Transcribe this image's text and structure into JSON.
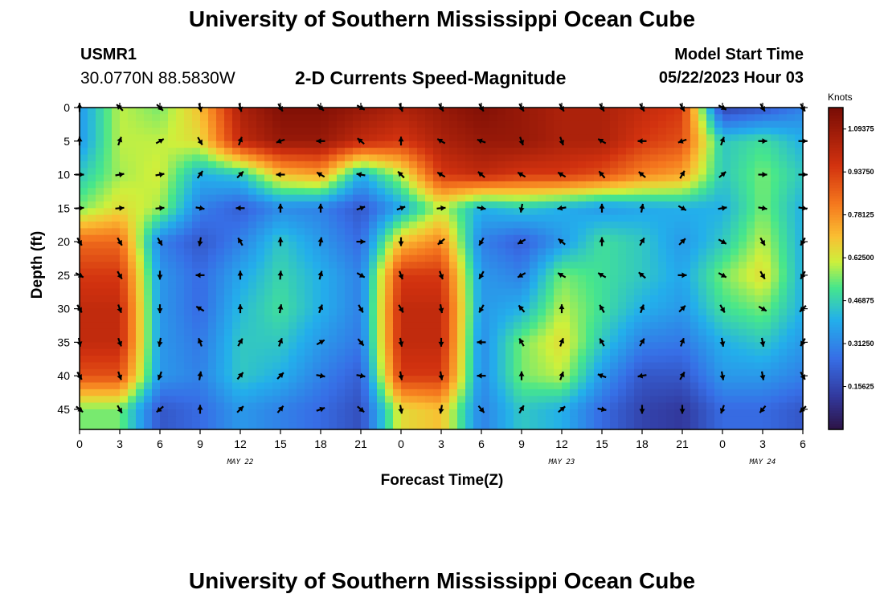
{
  "header": {
    "title": "University of Southern Mississippi Ocean Cube",
    "station": "USMR1",
    "coords": "30.0770N  88.5830W",
    "subtitle": "2-D Currents Speed-Magnitude",
    "start_label": "Model Start Time",
    "start_value": "05/22/2023 Hour 03"
  },
  "footer": {
    "title": "University of Southern Mississippi Ocean Cube"
  },
  "colors": {
    "background": "#ffffff",
    "axis": "#000000",
    "arrow": "#000000"
  },
  "chart_data": {
    "type": "heatmap",
    "xlabel": "Forecast Time(Z)",
    "ylabel": "Depth (ft)",
    "x_tick_labels": [
      "0",
      "3",
      "6",
      "9",
      "12",
      "15",
      "18",
      "21",
      "0",
      "3",
      "6",
      "9",
      "12",
      "15",
      "18",
      "21",
      "0",
      "3",
      "6"
    ],
    "day_labels": [
      {
        "text": "MAY 22",
        "tick": 4
      },
      {
        "text": "MAY 23",
        "tick": 12
      },
      {
        "text": "MAY 24",
        "tick": 17
      }
    ],
    "x_range_hours": [
      0,
      54
    ],
    "y_ticks": [
      0,
      5,
      10,
      15,
      20,
      25,
      30,
      35,
      40,
      45
    ],
    "y_range": [
      0,
      48
    ],
    "y_inverted": true,
    "colorbar": {
      "units": "Knots",
      "ticks": [
        "1.09375",
        "0.93750",
        "0.78125",
        "0.62500",
        "0.46875",
        "0.31250",
        "0.15625"
      ],
      "range": [
        0,
        1.171875
      ],
      "colormap": "jet-dark"
    },
    "depths": [
      0,
      5,
      10,
      15,
      20,
      25,
      30,
      35,
      40,
      45
    ],
    "speed": [
      [
        0.35,
        0.6,
        0.55,
        0.7,
        1.05,
        1.15,
        1.15,
        1.1,
        1.05,
        1.1,
        1.15,
        1.1,
        1.05,
        1.05,
        1.0,
        0.95,
        0.15,
        0.2,
        0.3
      ],
      [
        0.35,
        0.6,
        0.6,
        0.65,
        1.0,
        1.1,
        1.1,
        1.0,
        0.95,
        1.05,
        1.1,
        1.1,
        1.05,
        1.05,
        0.95,
        0.9,
        0.45,
        0.5,
        0.4
      ],
      [
        0.45,
        0.58,
        0.62,
        0.4,
        0.45,
        0.7,
        0.75,
        0.4,
        0.6,
        0.95,
        1.0,
        0.95,
        0.95,
        0.9,
        0.8,
        0.75,
        0.45,
        0.55,
        0.45
      ],
      [
        0.55,
        0.65,
        0.58,
        0.3,
        0.22,
        0.32,
        0.3,
        0.2,
        0.38,
        0.6,
        0.4,
        0.45,
        0.4,
        0.35,
        0.38,
        0.4,
        0.4,
        0.55,
        0.4
      ],
      [
        0.85,
        0.85,
        0.3,
        0.2,
        0.3,
        0.45,
        0.35,
        0.25,
        0.7,
        0.8,
        0.3,
        0.22,
        0.35,
        0.5,
        0.45,
        0.35,
        0.45,
        0.6,
        0.4
      ],
      [
        0.95,
        0.95,
        0.35,
        0.25,
        0.38,
        0.48,
        0.4,
        0.3,
        0.95,
        0.95,
        0.35,
        0.3,
        0.55,
        0.5,
        0.45,
        0.38,
        0.55,
        0.65,
        0.4
      ],
      [
        1.0,
        1.0,
        0.35,
        0.25,
        0.42,
        0.5,
        0.4,
        0.3,
        1.0,
        1.0,
        0.35,
        0.4,
        0.6,
        0.5,
        0.4,
        0.35,
        0.5,
        0.55,
        0.4
      ],
      [
        1.0,
        1.0,
        0.35,
        0.28,
        0.45,
        0.45,
        0.35,
        0.28,
        1.0,
        1.0,
        0.32,
        0.55,
        0.65,
        0.45,
        0.3,
        0.28,
        0.4,
        0.45,
        0.35
      ],
      [
        0.9,
        0.9,
        0.35,
        0.3,
        0.45,
        0.4,
        0.3,
        0.22,
        0.95,
        0.95,
        0.32,
        0.55,
        0.6,
        0.35,
        0.2,
        0.2,
        0.35,
        0.35,
        0.3
      ],
      [
        0.55,
        0.55,
        0.2,
        0.25,
        0.35,
        0.3,
        0.25,
        0.18,
        0.65,
        0.7,
        0.3,
        0.45,
        0.4,
        0.25,
        0.15,
        0.12,
        0.25,
        0.25,
        0.2
      ]
    ],
    "direction_deg": [
      [
        0,
        315,
        135,
        165,
        165,
        150,
        135,
        120,
        160,
        150,
        150,
        150,
        150,
        150,
        150,
        150,
        120,
        150,
        150
      ],
      [
        0,
        20,
        60,
        150,
        20,
        250,
        270,
        310,
        0,
        300,
        290,
        160,
        160,
        300,
        270,
        250,
        20,
        90,
        90
      ],
      [
        90,
        80,
        80,
        35,
        45,
        270,
        300,
        280,
        315,
        300,
        310,
        300,
        300,
        320,
        310,
        30,
        50,
        90,
        90
      ],
      [
        85,
        85,
        85,
        100,
        270,
        0,
        0,
        70,
        70,
        85,
        100,
        190,
        260,
        0,
        10,
        120,
        80,
        100,
        100
      ],
      [
        150,
        150,
        150,
        190,
        330,
        0,
        10,
        90,
        180,
        230,
        210,
        240,
        310,
        0,
        30,
        45,
        120,
        150,
        210
      ],
      [
        120,
        150,
        180,
        270,
        0,
        5,
        15,
        120,
        160,
        160,
        210,
        240,
        300,
        300,
        310,
        90,
        120,
        150,
        210
      ],
      [
        150,
        160,
        180,
        300,
        0,
        10,
        20,
        150,
        150,
        170,
        210,
        320,
        0,
        330,
        20,
        45,
        150,
        120,
        225
      ],
      [
        170,
        160,
        190,
        340,
        30,
        20,
        60,
        140,
        170,
        180,
        270,
        330,
        20,
        330,
        30,
        20,
        170,
        170,
        210
      ],
      [
        150,
        160,
        200,
        10,
        40,
        45,
        100,
        100,
        170,
        170,
        270,
        0,
        20,
        290,
        260,
        30,
        170,
        170,
        150
      ],
      [
        130,
        150,
        230,
        0,
        45,
        40,
        70,
        130,
        170,
        190,
        140,
        30,
        50,
        100,
        180,
        180,
        200,
        220,
        225
      ]
    ]
  }
}
